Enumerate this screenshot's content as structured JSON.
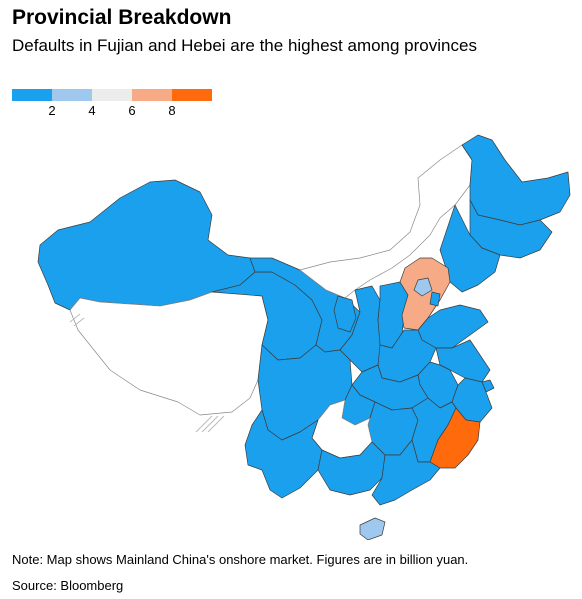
{
  "header": {
    "title": "Provincial Breakdown",
    "subtitle": "Defaults in Fujian and Hebei are the highest among provinces"
  },
  "legend": {
    "bins": [
      {
        "color": "#1aa0ec"
      },
      {
        "color": "#9ec8ee"
      },
      {
        "color": "#ececec"
      },
      {
        "color": "#f6ab86"
      },
      {
        "color": "#ff6a0c"
      }
    ],
    "ticks": [
      "2",
      "4",
      "6",
      "8"
    ]
  },
  "colors": {
    "low": "#1aa0ec",
    "mid_low": "#9ec8ee",
    "no_data": "#ffffff",
    "high": "#f6ab86",
    "highest": "#ff6a0c",
    "border": "#3c3c3c",
    "outline": "#888888"
  },
  "footer": {
    "note": "Note: Map shows Mainland China's onshore market. Figures are in billion yuan.",
    "source": "Source: Bloomberg"
  }
}
